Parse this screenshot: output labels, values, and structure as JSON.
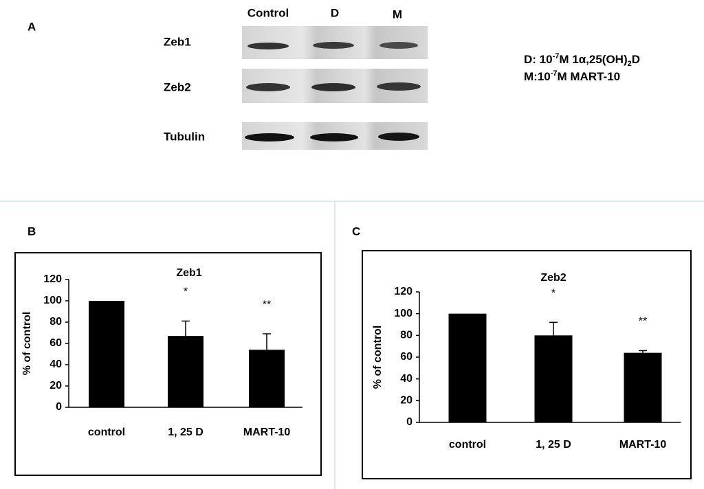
{
  "panel_labels": [
    "A",
    "B",
    "C"
  ],
  "blot": {
    "lanes": [
      "Control",
      "D",
      "M"
    ],
    "rows": [
      "Zeb1",
      "Zeb2",
      "Tubulin"
    ],
    "legend": [
      [
        "D: 10",
        "-7",
        "M 1α,25(OH)",
        "2",
        "D"
      ],
      [
        "M:10",
        "-7",
        "M MART-10"
      ]
    ]
  },
  "chart_data": [
    {
      "type": "bar",
      "title": "Zeb1",
      "y_label": "% of control",
      "categories": [
        "control",
        "1, 25 D",
        "MART-10"
      ],
      "values": [
        100,
        67,
        54
      ],
      "errors": [
        null,
        14,
        15
      ],
      "significance": [
        null,
        "*",
        "**"
      ],
      "color": "#000000",
      "ylim": [
        0,
        120
      ],
      "yticks": [
        0,
        20,
        40,
        60,
        80,
        100,
        120
      ]
    },
    {
      "type": "bar",
      "title": "Zeb2",
      "y_label": "% of control",
      "categories": [
        "control",
        "1, 25 D",
        "MART-10"
      ],
      "values": [
        100,
        80,
        64
      ],
      "errors": [
        null,
        12,
        2
      ],
      "significance": [
        null,
        "*",
        "**"
      ],
      "color": "#000000",
      "ylim": [
        0,
        120
      ],
      "yticks": [
        0,
        20,
        40,
        60,
        80,
        100,
        120
      ]
    }
  ]
}
